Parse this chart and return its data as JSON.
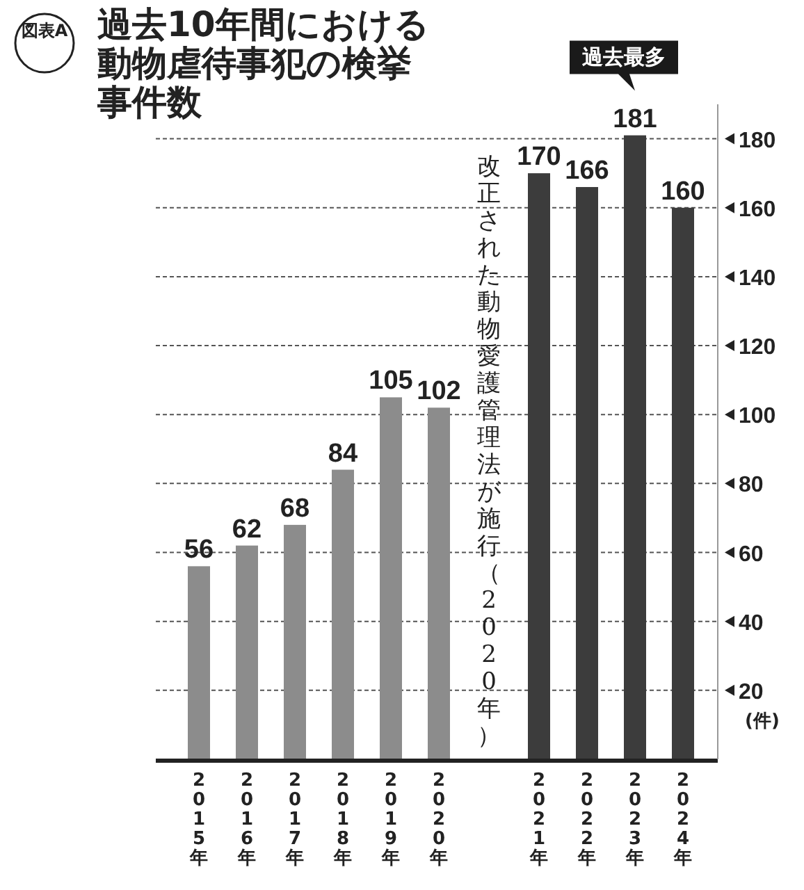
{
  "chart_data": {
    "type": "bar",
    "title": "過去10年間における動物虐待事犯の検挙事件数",
    "categories": [
      "2015年",
      "2016年",
      "2017年",
      "2018年",
      "2019年",
      "2020年",
      "2021年",
      "2022年",
      "2023年",
      "2024年"
    ],
    "values": [
      56,
      62,
      68,
      84,
      105,
      102,
      170,
      166,
      181,
      160
    ],
    "colors": [
      "#8c8c8c",
      "#8c8c8c",
      "#8c8c8c",
      "#8c8c8c",
      "#8c8c8c",
      "#8c8c8c",
      "#3c3c3c",
      "#3c3c3c",
      "#3c3c3c",
      "#3c3c3c"
    ],
    "ylabel": "(件)",
    "ylim": [
      0,
      190
    ],
    "yticks": [
      20,
      40,
      60,
      80,
      100,
      120,
      140,
      160,
      180
    ],
    "grid": "y",
    "data_labels": true,
    "annotations": [
      "図表A",
      "過去最多",
      "改正された動物愛護管理法が施行（2020年）"
    ]
  }
}
